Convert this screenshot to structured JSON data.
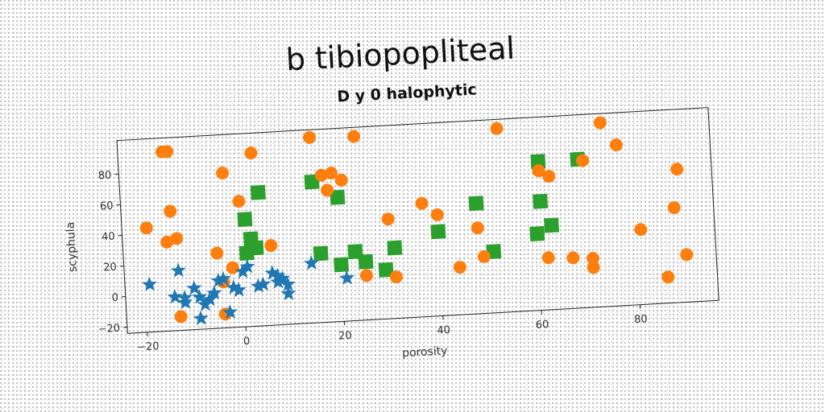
{
  "chart_data": {
    "type": "scatter",
    "title": "b tibiopopliteal",
    "subtitle": "D y 0 halophytic",
    "xlabel": "porosity",
    "ylabel": "scyphula",
    "xlim": [
      -24,
      96
    ],
    "ylim": [
      -24,
      102
    ],
    "xticks": [
      -20,
      0,
      20,
      40,
      60,
      80
    ],
    "yticks": [
      -20,
      0,
      20,
      40,
      60,
      80
    ],
    "grid": false,
    "series": [
      {
        "marker": "star",
        "color": "#1f77b4",
        "points": [
          [
            -19,
            7
          ],
          [
            -14,
            -2
          ],
          [
            -13,
            15
          ],
          [
            -12,
            -6
          ],
          [
            -12,
            -3
          ],
          [
            -10,
            3
          ],
          [
            -9,
            -3
          ],
          [
            -9,
            -17
          ],
          [
            -8,
            -8
          ],
          [
            -7,
            -5
          ],
          [
            -6,
            -1
          ],
          [
            -5,
            7
          ],
          [
            -4,
            8
          ],
          [
            -3,
            -14
          ],
          [
            -2,
            2
          ],
          [
            -1,
            0
          ],
          [
            0,
            12
          ],
          [
            1,
            15
          ],
          [
            3,
            2
          ],
          [
            4,
            3
          ],
          [
            6,
            10
          ],
          [
            7,
            4
          ],
          [
            7,
            8
          ],
          [
            8,
            6
          ],
          [
            9,
            2
          ],
          [
            9,
            -4
          ],
          [
            14,
            15
          ],
          [
            21,
            4
          ]
        ]
      },
      {
        "marker": "circle",
        "color": "#ff7f0e",
        "points": [
          [
            -15,
            93
          ],
          [
            -14,
            93
          ],
          [
            -19,
            44
          ],
          [
            -15,
            34
          ],
          [
            -13,
            36
          ],
          [
            -14,
            54
          ],
          [
            -5,
            25
          ],
          [
            -3,
            77
          ],
          [
            -2,
            15
          ],
          [
            -4,
            6
          ],
          [
            -4,
            -15
          ],
          [
            -13,
            -15
          ],
          [
            0,
            58
          ],
          [
            3,
            89
          ],
          [
            6,
            28
          ],
          [
            15,
            97
          ],
          [
            17,
            72
          ],
          [
            18,
            62
          ],
          [
            19,
            73
          ],
          [
            21,
            68
          ],
          [
            24,
            96
          ],
          [
            25,
            5
          ],
          [
            30,
            41
          ],
          [
            31,
            3
          ],
          [
            37,
            50
          ],
          [
            40,
            42
          ],
          [
            44,
            7
          ],
          [
            48,
            32
          ],
          [
            49,
            13
          ],
          [
            53,
            96
          ],
          [
            61,
            67
          ],
          [
            62,
            10
          ],
          [
            63,
            63
          ],
          [
            67,
            9
          ],
          [
            70,
            72
          ],
          [
            71,
            8
          ],
          [
            71,
            2
          ],
          [
            74,
            96
          ],
          [
            77,
            81
          ],
          [
            81,
            25
          ],
          [
            88,
            38
          ],
          [
            89,
            63
          ],
          [
            90,
            7
          ],
          [
            86,
            -7
          ]
        ]
      },
      {
        "marker": "square",
        "color": "#2ca02c",
        "points": [
          [
            1,
            46
          ],
          [
            2,
            33
          ],
          [
            3,
            27
          ],
          [
            1,
            24
          ],
          [
            4,
            63
          ],
          [
            15,
            68
          ],
          [
            20,
            57
          ],
          [
            16,
            21
          ],
          [
            20,
            13
          ],
          [
            23,
            21
          ],
          [
            25,
            14
          ],
          [
            29,
            8
          ],
          [
            31,
            22
          ],
          [
            40,
            31
          ],
          [
            48,
            48
          ],
          [
            51,
            16
          ],
          [
            60,
            26
          ],
          [
            61,
            73
          ],
          [
            61,
            47
          ],
          [
            63,
            31
          ],
          [
            69,
            73
          ]
        ]
      }
    ]
  }
}
